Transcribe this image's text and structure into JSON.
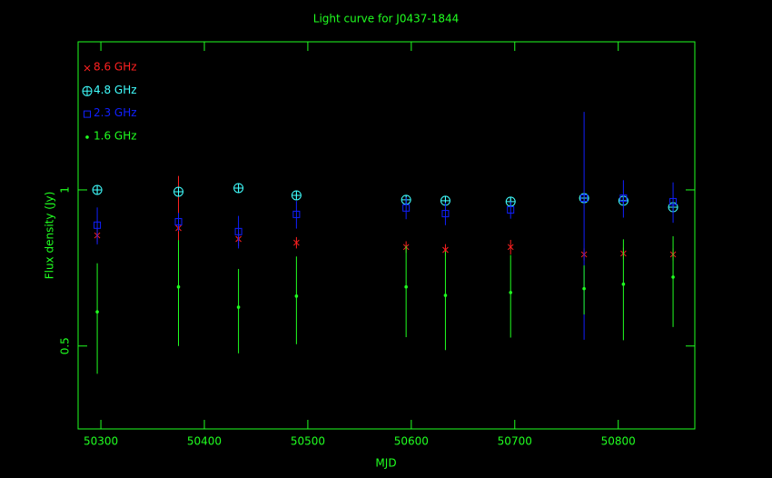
{
  "chart_data": {
    "type": "errorbar",
    "title": "Light curve for J0437-1844",
    "xlabel": "MJD",
    "ylabel": "Flux density (Jy)",
    "x": [
      50296.5,
      50375,
      50433,
      50489,
      50595,
      50633,
      50696,
      50767,
      50805,
      50853
    ],
    "series": [
      {
        "name": "8.6 GHz",
        "color": "#ff2020",
        "marker": "x",
        "values": [
          0.817,
          0.844,
          0.804,
          0.791,
          0.776,
          0.766,
          0.776,
          0.751,
          0.754,
          0.751
        ],
        "errors": [
          0.025,
          0.22,
          0.025,
          0.02,
          0.02,
          0.02,
          0.025,
          0.02,
          0.02,
          0.02
        ]
      },
      {
        "name": "4.8 GHz",
        "color": "#40ffff",
        "marker": "circle-plus",
        "values": [
          1.0,
          0.992,
          1.008,
          0.976,
          0.957,
          0.953,
          0.949,
          0.964,
          0.953,
          0.926
        ],
        "errors": [
          0.015,
          0.015,
          0.015,
          0.015,
          0.02,
          0.02,
          0.02,
          0.02,
          0.02,
          0.02
        ]
      },
      {
        "name": "2.3 GHz",
        "color": "#1020ff",
        "marker": "square",
        "values": [
          0.855,
          0.868,
          0.831,
          0.897,
          0.923,
          0.9,
          0.915,
          0.964,
          0.964,
          0.949
        ],
        "errors": [
          0.07,
          0.035,
          0.06,
          0.055,
          0.045,
          0.045,
          0.035,
          0.45,
          0.08,
          0.085
        ]
      },
      {
        "name": "1.6 GHz",
        "color": "#20ff20",
        "marker": "dot",
        "values": [
          0.582,
          0.65,
          0.594,
          0.624,
          0.65,
          0.626,
          0.634,
          0.645,
          0.658,
          0.679
        ],
        "errors": [
          0.14,
          0.15,
          0.11,
          0.12,
          0.13,
          0.135,
          0.115,
          0.07,
          0.145,
          0.135
        ]
      }
    ],
    "xlim": [
      50278,
      50874
    ],
    "xticks": [
      50300,
      50400,
      50500,
      50600,
      50700,
      50800
    ],
    "ylim": [
      0.346,
      1.93
    ],
    "yticks": [
      0.5,
      1
    ],
    "ylog": true,
    "axis_color": "#20ff20",
    "legend": "upper-left"
  }
}
